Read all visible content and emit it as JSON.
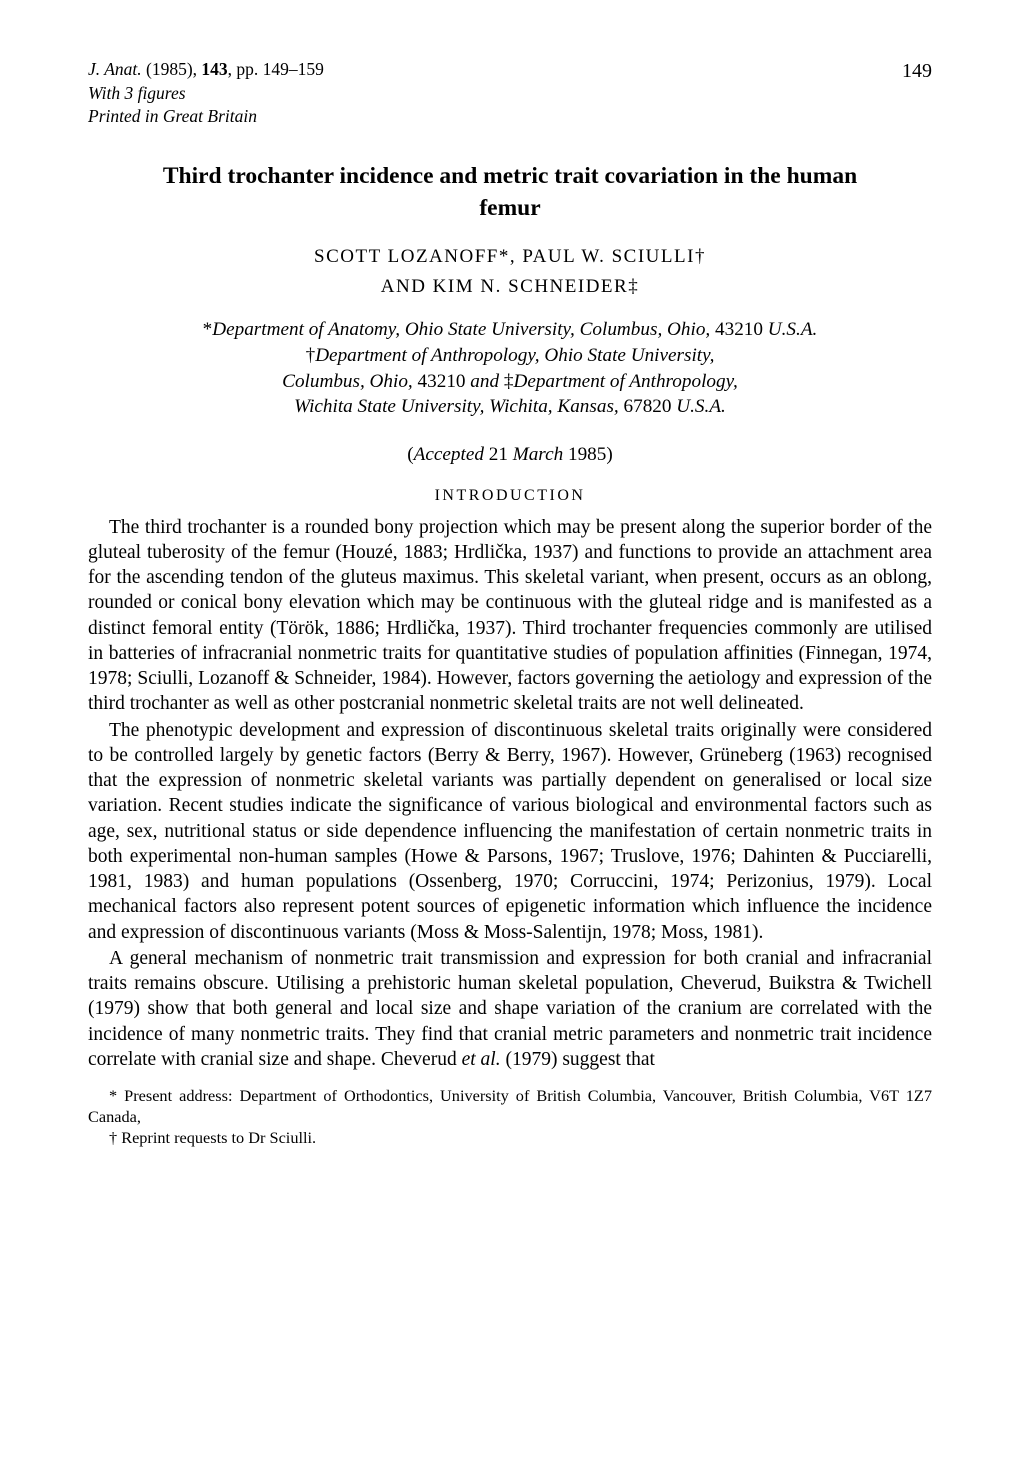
{
  "pageNumber": "149",
  "journalHeader": {
    "line1_pre": "J. Anat.",
    "line1_post": " (1985), ",
    "line1_vol": "143",
    "line1_pages": ", pp. 149–159",
    "line2": "With 3 figures",
    "line3": "Printed in Great Britain"
  },
  "title": "Third trochanter incidence and metric trait covariation in the human femur",
  "authorsLine1": "SCOTT LOZANOFF*, PAUL W. SCIULLI†",
  "authorsLine2": "AND KIM N. SCHNEIDER‡",
  "affiliations": {
    "line1_pre": "*",
    "line1": "Department of Anatomy, Ohio State University, Columbus, Ohio, ",
    "line1_post": "43210 ",
    "line1_usa": "U.S.A.",
    "line2_pre": "†",
    "line2": "Department of Anthropology, Ohio State University,",
    "line3_a": "Columbus, Ohio, ",
    "line3_zip": "43210 ",
    "line3_and": "and ",
    "line3_pre2": "‡",
    "line3_b": "Department of Anthropology,",
    "line4": "Wichita State University, Wichita, Kansas, ",
    "line4_zip": "67820 ",
    "line4_usa": "U.S.A."
  },
  "accepted_open": "(",
  "accepted_label": "Accepted ",
  "accepted_date": "21 ",
  "accepted_month": "March ",
  "accepted_year": "1985",
  "accepted_close": ")",
  "sectionHeading": "INTRODUCTION",
  "para1_a": "The third trochanter is a rounded bony projection which may be present along the superior border of the gluteal tuberosity of the femur (Houzé, 1883; Hrdlička, 1937) and functions to provide an attachment area for the ascending tendon of the gluteus maximus. This skeletal variant, when present, occurs as an oblong, rounded or conical bony elevation which may be continuous with the gluteal ridge and is manifested as a distinct femoral entity (Török, 1886; Hrdlička, 1937). Third trochanter frequencies commonly are utilised in batteries of infracranial nonmetric traits for quantitative studies of population affinities (Finnegan, 1974, 1978; Sciulli, Lozanoff & Schneider, 1984). However, factors governing the aetiology and expression of the third trochanter as well as other postcranial nonmetric skeletal traits are not well delineated.",
  "para2_a": "The phenotypic development and expression of discontinuous skeletal traits originally were considered to be controlled largely by genetic factors (Berry & Berry, 1967). However, Grüneberg (1963) recognised that the expression of nonmetric skeletal variants was partially dependent on generalised or local size variation. Recent studies indicate the significance of various biological and environmental factors such as age, sex, nutritional status or side dependence influencing the manifestation of certain nonmetric traits in both experimental non-human samples (Howe & Parsons, 1967; Truslove, 1976; Dahinten & Pucciarelli, 1981, 1983) and human populations (Ossenberg, 1970; Corruccini, 1974; Perizonius, 1979). Local mechanical factors also represent potent sources of epigenetic information which influence the incidence and expression of discontinuous variants (Moss & Moss-Salentijn, 1978; Moss, 1981).",
  "para3_a": "A general mechanism of nonmetric trait transmission and expression for both cranial and infracranial traits remains obscure. Utilising a prehistoric human skeletal population, Cheverud, Buikstra & Twichell (1979) show that both general and local size and shape variation of the cranium are correlated with the incidence of many nonmetric traits. They find that cranial metric parameters and nonmetric trait incidence correlate with cranial size and shape. Cheverud ",
  "para3_etal": "et al.",
  "para3_b": " (1979) suggest that",
  "fn1": "* Present address: Department of Orthodontics, University of British Columbia, Vancouver, British Columbia, V6T 1Z7 Canada,",
  "fn2": "† Reprint requests to Dr Sciulli."
}
